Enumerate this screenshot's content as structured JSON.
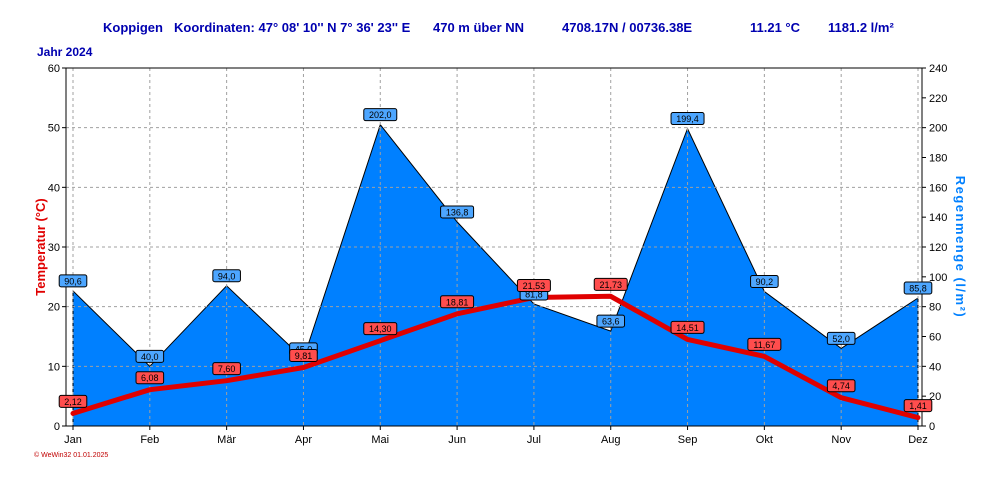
{
  "header": {
    "station": "Koppigen",
    "coords_label": "Koordinaten: 47° 08' 10'' N  7° 36' 23'' E",
    "altitude": "470 m über NN",
    "grid_ref": "4708.17N / 00736.38E",
    "mean_temp": "11.21 °C",
    "total_precip": "1181.2 l/m²",
    "year": "Jahr  2024"
  },
  "footer": {
    "copyright": "© WeWin32  01.01.2025"
  },
  "colors": {
    "temperature": "#e00000",
    "precipitation_fill": "#0080ff",
    "precipitation_axis": "#0080ff",
    "grid": "#a0a0a0",
    "title": "#0000b0",
    "precip_label_bg": "#4da6ff",
    "temp_label_bg": "#ff4d4d"
  },
  "chart_data": {
    "type": "area",
    "categories": [
      "Jan",
      "Feb",
      "Mär",
      "Apr",
      "Mai",
      "Jun",
      "Jul",
      "Aug",
      "Sep",
      "Okt",
      "Nov",
      "Dez"
    ],
    "series": [
      {
        "name": "Temperatur",
        "kind": "line",
        "axis": "left",
        "values": [
          2.12,
          6.08,
          7.6,
          9.81,
          14.3,
          18.81,
          21.53,
          21.73,
          14.51,
          11.67,
          4.74,
          1.41
        ],
        "labels": [
          "2,12",
          "6,08",
          "7,60",
          "9,81",
          "14,30",
          "18,81",
          "21,53",
          "21,73",
          "14,51",
          "11,67",
          "4,74",
          "1,41"
        ]
      },
      {
        "name": "Regenmenge",
        "kind": "area",
        "axis": "right",
        "values": [
          90.6,
          40.0,
          94.0,
          45.0,
          202.0,
          136.8,
          81.8,
          63.6,
          199.4,
          90.2,
          52.0,
          85.8
        ],
        "labels": [
          "90,6",
          "40,0",
          "94,0",
          "45,0",
          "202,0",
          "136,8",
          "81,8",
          "63,6",
          "199,4",
          "90,2",
          "52,0",
          "85,8"
        ]
      }
    ],
    "ylabel": "Temperatur  (°C)",
    "y2label": "Regenmenge  (l/m²)",
    "ylim": [
      0,
      60
    ],
    "y2lim": [
      0,
      240
    ],
    "yticks": [
      "0",
      "10",
      "20",
      "30",
      "40",
      "50",
      "60"
    ],
    "y2ticks": [
      "0",
      "20",
      "40",
      "60",
      "80",
      "100",
      "120",
      "140",
      "160",
      "180",
      "200",
      "220",
      "240"
    ],
    "grid": true,
    "legend": "none"
  }
}
